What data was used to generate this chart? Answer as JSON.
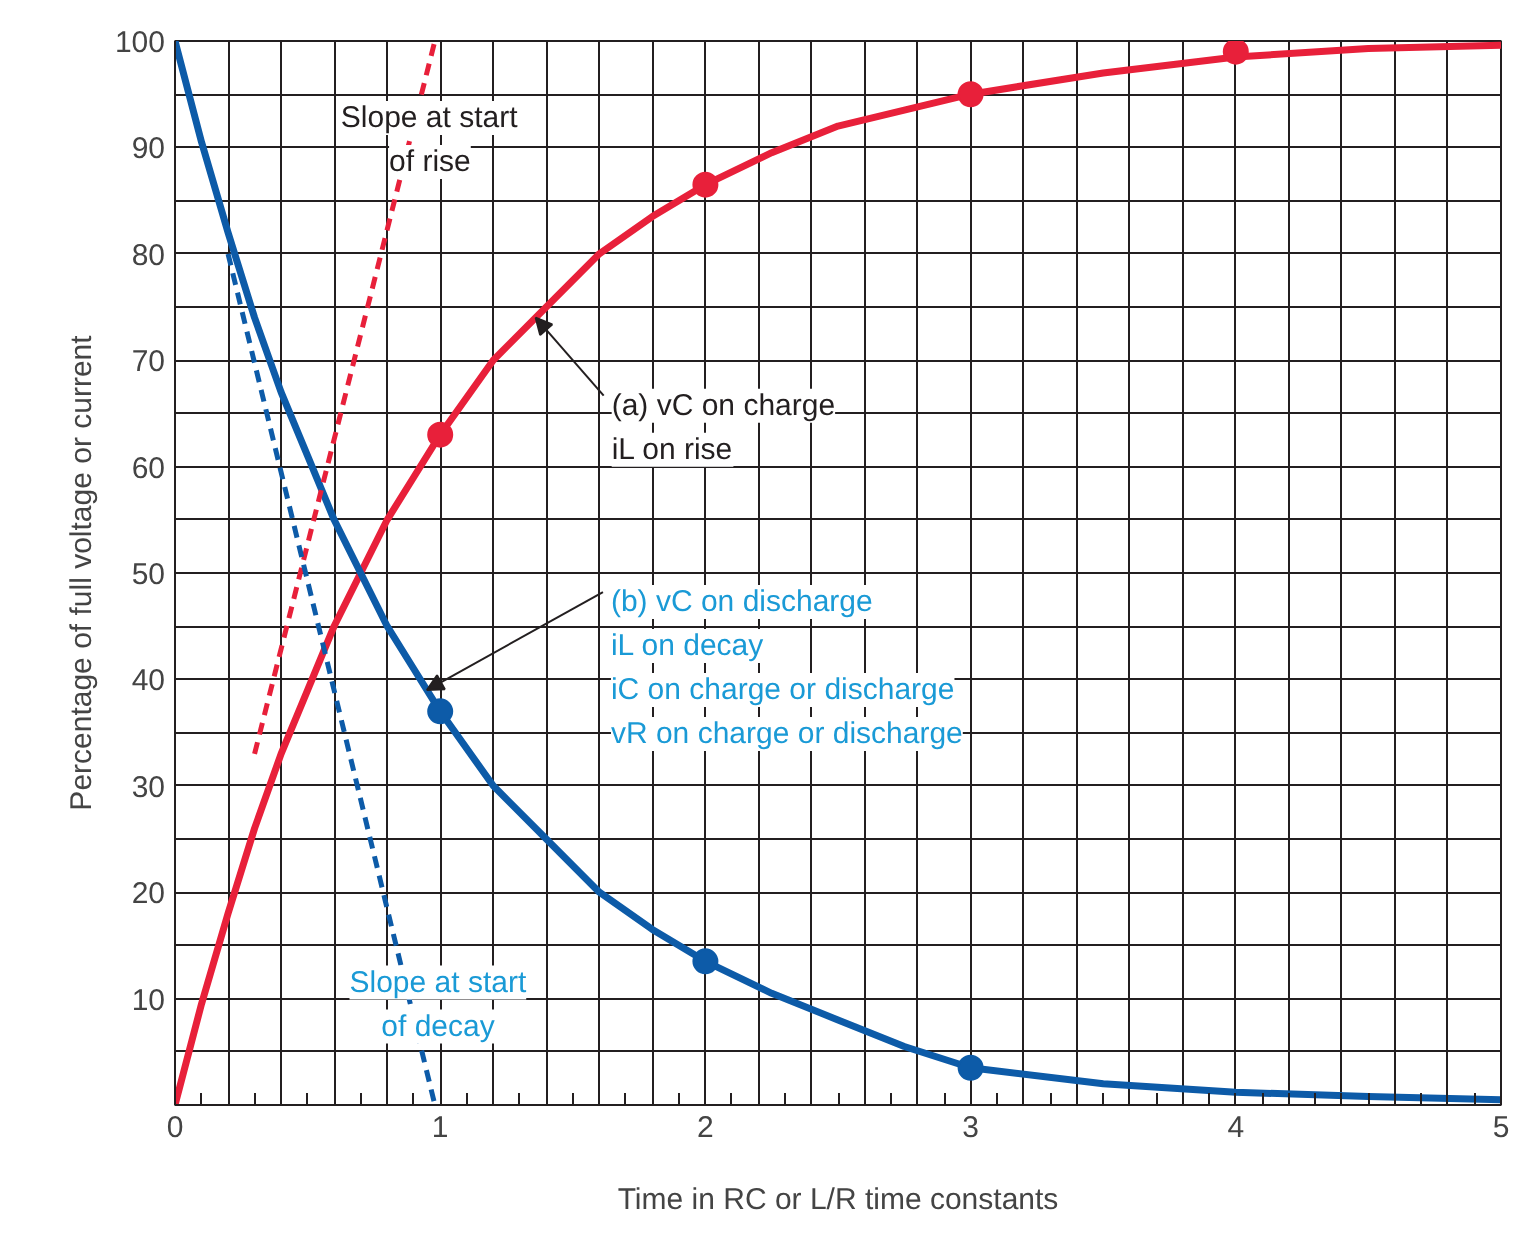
{
  "chart_data": {
    "type": "line",
    "xlabel": "Time in RC or L/R time constants",
    "ylabel": "Percentage of full voltage or current",
    "xlim": [
      0,
      5
    ],
    "ylim": [
      0,
      100
    ],
    "xticks": [
      0,
      1,
      2,
      3,
      4,
      5
    ],
    "yticks": [
      10,
      20,
      30,
      40,
      50,
      60,
      70,
      80,
      90,
      100
    ],
    "grid": true,
    "series": [
      {
        "color": "#e8203a",
        "x": [
          0,
          0.1,
          0.2,
          0.3,
          0.4,
          0.5,
          0.6,
          0.7,
          0.8,
          0.9,
          1,
          1.2,
          1.4,
          1.6,
          1.8,
          2,
          2.25,
          2.5,
          2.75,
          3,
          3.5,
          4,
          4.5,
          5
        ],
        "values": [
          0,
          9.5,
          18,
          26,
          33,
          39,
          45,
          50,
          55,
          59,
          63,
          70,
          75,
          80,
          83.5,
          86.5,
          89.5,
          92,
          93.5,
          95,
          97,
          98.5,
          99.3,
          99.6
        ]
      },
      {
        "color": "#0d5ba8",
        "x": [
          0,
          0.1,
          0.2,
          0.3,
          0.4,
          0.5,
          0.6,
          0.7,
          0.8,
          0.9,
          1,
          1.2,
          1.4,
          1.6,
          1.8,
          2,
          2.25,
          2.5,
          2.75,
          3,
          3.5,
          4,
          4.5,
          5
        ],
        "values": [
          100,
          90.5,
          82,
          74,
          67,
          61,
          55,
          50,
          45,
          41,
          37,
          30,
          25,
          20,
          16.5,
          13.5,
          10.5,
          8,
          5.5,
          3.5,
          2,
          1.2,
          0.8,
          0.5
        ]
      },
      {
        "type": "line",
        "line_style": "dashed",
        "color": "#e8203a",
        "x": [
          0.3,
          0.98
        ],
        "values": [
          33,
          100
        ]
      },
      {
        "type": "line",
        "line_style": "dashed",
        "color": "#0d5ba8",
        "x": [
          0.2,
          0.98
        ],
        "values": [
          80,
          0
        ]
      },
      {
        "type": "scatter",
        "marker": "circle",
        "color": "#e8203a",
        "x": [
          1,
          2,
          3,
          4
        ],
        "values": [
          63,
          86.5,
          95,
          99
        ]
      },
      {
        "type": "scatter",
        "marker": "circle",
        "color": "#0d5ba8",
        "x": [
          1,
          2,
          3
        ],
        "values": [
          37,
          13.5,
          3.5
        ]
      }
    ],
    "annotations": [
      {
        "text": "Slope at start\nof rise",
        "x": 0.9,
        "y": 92
      },
      {
        "text": "(a) vC on charge\niL on rise",
        "x": 1.36,
        "y": 74
      },
      {
        "text": "(b) vC on discharge\niL on decay\niC on charge or discharge\nvR on charge or discharge",
        "x": 0.95,
        "y": 39
      },
      {
        "text": "Slope at start\nof decay",
        "x": 0.88,
        "y": 10
      }
    ]
  }
}
